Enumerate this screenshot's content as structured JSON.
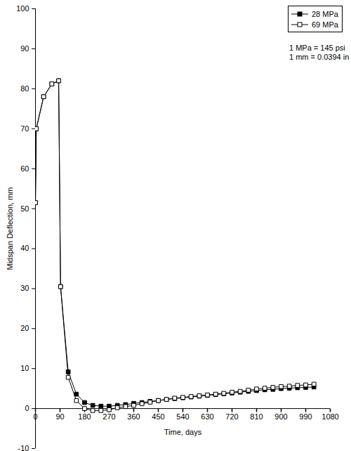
{
  "chart_data": {
    "type": "line",
    "x_label": "Time, days",
    "y_label": "Midspan Deflection, mm",
    "annotations": [
      "1 MPa = 145 psi",
      "1 mm = 0.0394 in"
    ],
    "x": [
      0,
      3,
      30,
      60,
      85,
      92,
      120,
      150,
      180,
      210,
      240,
      270,
      300,
      330,
      360,
      390,
      420,
      450,
      480,
      510,
      540,
      570,
      600,
      630,
      660,
      690,
      720,
      750,
      780,
      810,
      840,
      870,
      900,
      930,
      960,
      990,
      1020
    ],
    "series": [
      {
        "name": "28 MPa",
        "color": "#000000",
        "marker": "filled-square",
        "line_style": "solid",
        "values": [
          51.5,
          70,
          78,
          81.2,
          82,
          30.5,
          9.2,
          3.6,
          1.5,
          0.8,
          0.6,
          0.6,
          0.8,
          1.0,
          1.3,
          1.5,
          1.8,
          2.0,
          2.3,
          2.5,
          2.7,
          2.9,
          3.1,
          3.3,
          3.5,
          3.7,
          3.9,
          4.1,
          4.3,
          4.5,
          4.7,
          4.8,
          5.0,
          5.1,
          5.2,
          5.3,
          5.4
        ]
      },
      {
        "name": "69 MPa",
        "color": "#000000",
        "marker": "open-square",
        "line_style": "solid",
        "values": [
          51.5,
          70,
          78,
          81.2,
          82,
          30.5,
          7.8,
          2.0,
          0.0,
          -0.5,
          -0.5,
          -0.3,
          0.2,
          0.5,
          0.8,
          1.2,
          1.6,
          2.0,
          2.3,
          2.6,
          2.8,
          3.0,
          3.2,
          3.4,
          3.6,
          3.8,
          4.1,
          4.3,
          4.6,
          4.9,
          5.1,
          5.3,
          5.5,
          5.6,
          5.8,
          5.9,
          6.1
        ]
      }
    ],
    "xlim": [
      0,
      1080
    ],
    "xticks": [
      0,
      90,
      180,
      270,
      360,
      450,
      540,
      630,
      720,
      810,
      900,
      990,
      1080
    ],
    "ylim": [
      -10,
      100
    ],
    "yticks": [
      -10,
      0,
      10,
      20,
      30,
      40,
      50,
      60,
      70,
      80,
      90,
      100
    ],
    "grid": false,
    "legend": "top-right"
  }
}
